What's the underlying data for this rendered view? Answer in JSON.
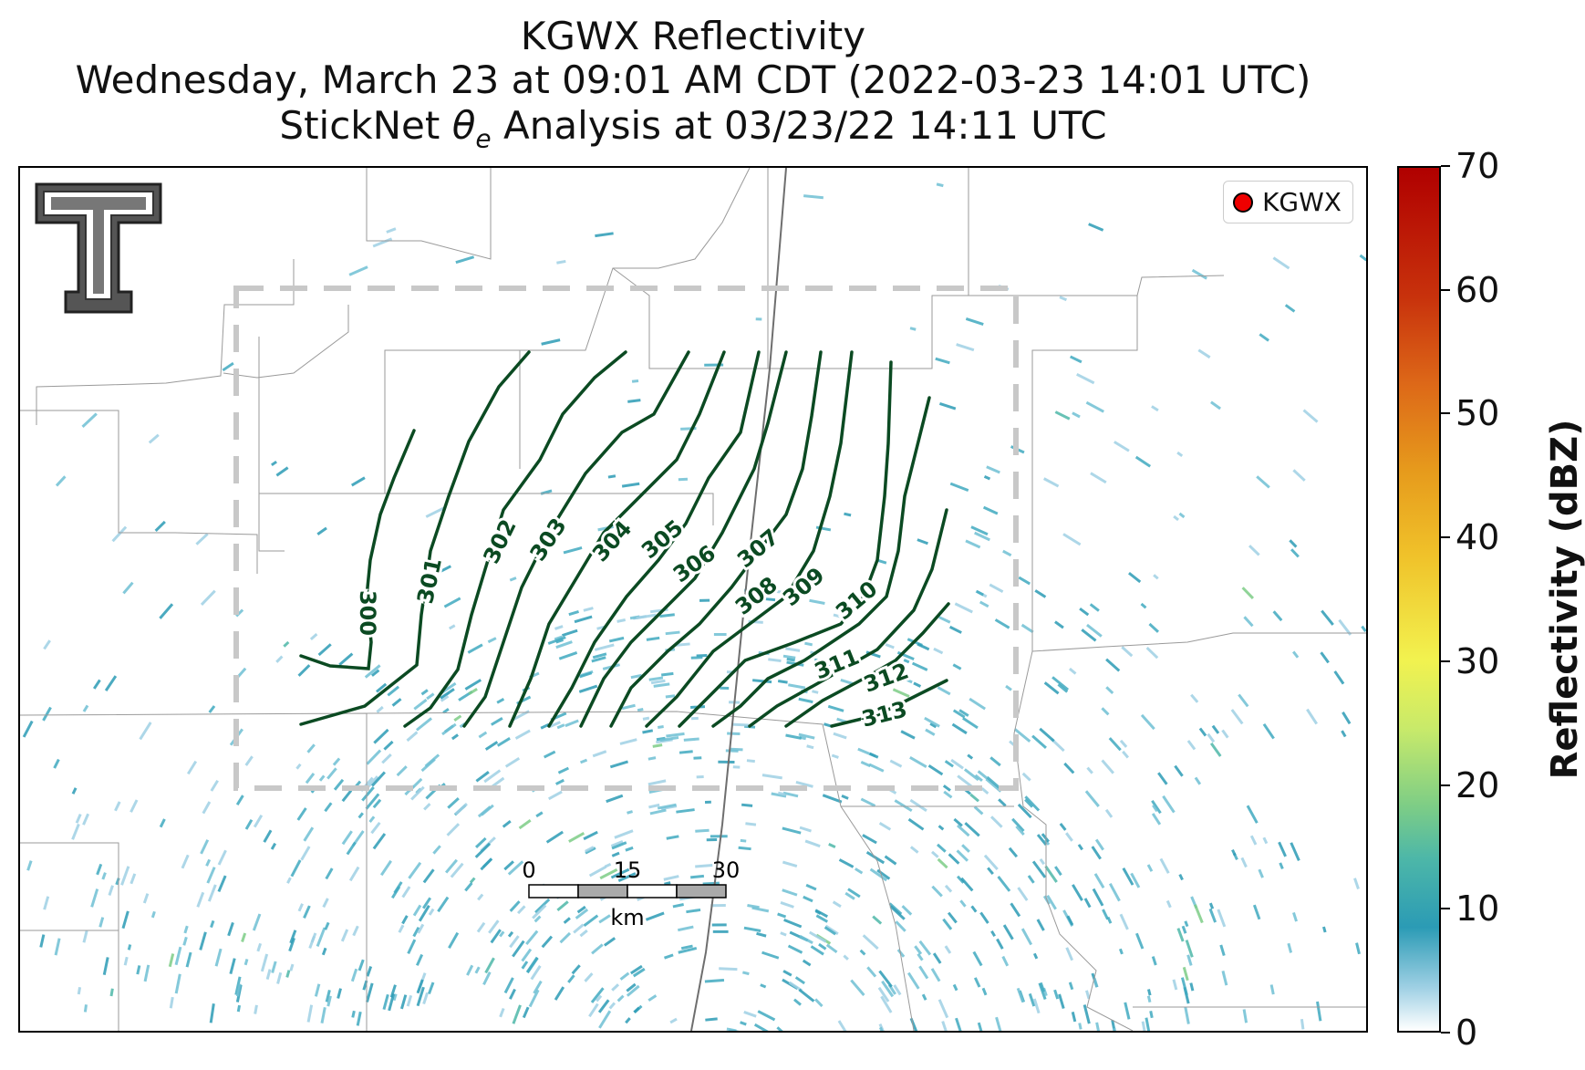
{
  "title": {
    "line1": "KGWX Reflectivity",
    "line2": "Wednesday, March 23 at 09:01 AM CDT (2022-03-23 14:01 UTC)",
    "line3_prefix": "StickNet ",
    "line3_symbol": "θ",
    "line3_sub": "e",
    "line3_suffix": " Analysis at 03/23/22 14:11 UTC"
  },
  "legend": {
    "label": "KGWX",
    "marker_color": "#e31a1c"
  },
  "logo": {
    "name": "texas-tech-double-t-logo",
    "text": "TT"
  },
  "colorbar": {
    "label": "Reflectivity (dBZ)",
    "ticks": [
      "0",
      "10",
      "20",
      "30",
      "40",
      "50",
      "60",
      "70"
    ],
    "colors": [
      "#ffffff",
      "#2b9bb5",
      "#7dcd86",
      "#f2f24f",
      "#e69a1c",
      "#c8320c",
      "#b00000"
    ]
  },
  "contours": {
    "color": "#0b4a22",
    "labels": [
      "300",
      "301",
      "302",
      "303",
      "304",
      "305",
      "306",
      "307",
      "308",
      "309",
      "310",
      "311",
      "312",
      "313"
    ]
  },
  "scalebar": {
    "ticks": [
      "0",
      "15",
      "30"
    ],
    "unit": "km"
  },
  "colors": {
    "analysis_box": "#c8c8c8",
    "county_lines": "#9a9a9a",
    "echo": "#2b9bb5"
  }
}
